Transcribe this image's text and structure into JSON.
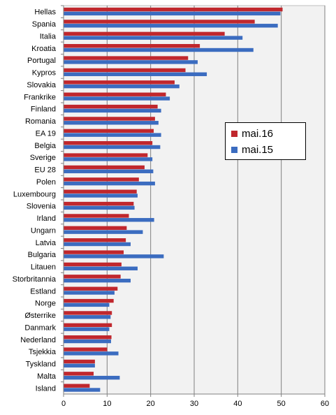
{
  "chart_data": {
    "type": "bar",
    "orientation": "horizontal",
    "categories": [
      "Hellas",
      "Spania",
      "Italia",
      "Kroatia",
      "Portugal",
      "Kypros",
      "Slovakia",
      "Frankrike",
      "Finland",
      "Romania",
      "EA 19",
      "Belgia",
      "Sverige",
      "EU 28",
      "Polen",
      "Luxembourg",
      "Slovenia",
      "Irland",
      "Ungarn",
      "Latvia",
      "Bulgaria",
      "Litauen",
      "Storbritannia",
      "Estland",
      "Norge",
      "Østerrike",
      "Danmark",
      "Nederland",
      "Tsjekkia",
      "Tyskland",
      "Malta",
      "Island"
    ],
    "series": [
      {
        "name": "mai.16",
        "color": "#c0272d",
        "values": [
          50.3,
          43.9,
          37.0,
          31.3,
          28.6,
          28.0,
          25.5,
          23.5,
          21.6,
          21.0,
          20.7,
          20.4,
          19.3,
          18.6,
          17.3,
          16.8,
          16.1,
          15.0,
          14.5,
          14.3,
          13.8,
          13.3,
          13.1,
          12.4,
          11.5,
          11.1,
          11.1,
          11.0,
          10.0,
          7.2,
          6.9,
          6.0
        ]
      },
      {
        "name": "mai.15",
        "color": "#3b6cc0",
        "values": [
          49.8,
          49.2,
          41.1,
          43.6,
          30.8,
          32.9,
          26.6,
          24.4,
          22.4,
          21.8,
          22.4,
          22.2,
          20.4,
          20.6,
          21.0,
          17.0,
          16.3,
          20.8,
          18.2,
          15.4,
          23.0,
          17.0,
          15.4,
          11.7,
          10.5,
          10.8,
          10.5,
          10.9,
          12.6,
          7.2,
          12.9,
          8.4
        ]
      }
    ],
    "xlim": [
      0,
      60
    ],
    "xticks": [
      0,
      10,
      20,
      30,
      40,
      50,
      60
    ],
    "grid": true,
    "legend_position": "right-center",
    "plot_background": "#f2f2f2"
  }
}
